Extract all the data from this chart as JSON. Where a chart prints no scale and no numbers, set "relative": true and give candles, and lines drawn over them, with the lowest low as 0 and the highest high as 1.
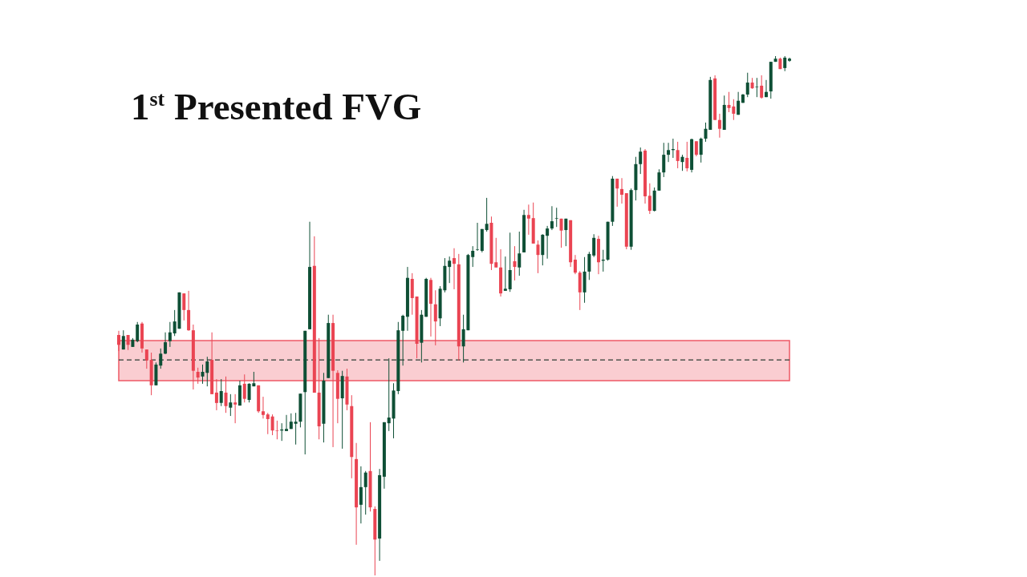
{
  "chart_data": {
    "type": "candlestick",
    "title": "1$^{st}$ Presented FVG",
    "relative": true,
    "tick_labels": false,
    "categories": [
      null,
      null,
      null,
      null,
      null,
      null,
      null,
      null,
      null,
      null,
      null,
      null,
      null,
      null,
      null,
      null,
      null,
      null,
      null,
      null,
      null,
      null,
      null,
      null,
      null,
      null,
      null,
      null,
      null,
      null,
      null,
      null,
      null,
      null,
      null,
      null,
      null,
      null,
      null,
      null,
      null,
      null,
      null,
      null,
      null,
      null,
      null,
      null,
      null,
      null,
      null,
      null,
      null,
      null,
      null,
      null,
      null,
      null,
      null,
      null,
      null,
      null,
      null,
      null,
      null,
      null,
      null,
      null,
      null,
      null,
      null,
      null,
      null,
      null,
      null,
      null,
      null,
      null,
      null,
      null,
      null,
      null,
      null,
      null,
      null,
      null,
      null,
      null,
      null,
      null,
      null,
      null,
      null,
      null,
      null,
      null,
      null,
      null,
      null,
      null,
      null,
      null,
      null,
      null,
      null,
      null,
      null,
      null,
      null,
      null,
      null,
      null,
      null,
      null,
      null,
      null,
      null,
      null,
      null,
      null,
      null,
      null,
      null,
      null,
      null,
      null,
      null,
      null,
      null,
      null,
      null,
      null,
      null,
      null,
      null,
      null,
      null,
      null,
      null,
      null,
      null,
      null,
      null,
      null,
      null
    ],
    "ohlc": [
      [
        0.463,
        0.471,
        0.432,
        0.444
      ],
      [
        0.435,
        0.472,
        0.435,
        0.461
      ],
      [
        0.463,
        0.463,
        0.434,
        0.444
      ],
      [
        0.44,
        0.457,
        0.44,
        0.454
      ],
      [
        0.451,
        0.488,
        0.449,
        0.483
      ],
      [
        0.485,
        0.488,
        0.429,
        0.437
      ],
      [
        0.435,
        0.435,
        0.398,
        0.414
      ],
      [
        0.415,
        0.429,
        0.347,
        0.366
      ],
      [
        0.366,
        0.41,
        0.366,
        0.406
      ],
      [
        0.404,
        0.437,
        0.398,
        0.427
      ],
      [
        0.427,
        0.468,
        0.426,
        0.449
      ],
      [
        0.451,
        0.488,
        0.44,
        0.468
      ],
      [
        0.466,
        0.511,
        0.461,
        0.489
      ],
      [
        0.475,
        0.545,
        0.475,
        0.545
      ],
      [
        0.543,
        0.543,
        0.491,
        0.511
      ],
      [
        0.511,
        0.548,
        0.471,
        0.472
      ],
      [
        0.472,
        0.483,
        0.358,
        0.394
      ],
      [
        0.392,
        0.4,
        0.369,
        0.381
      ],
      [
        0.383,
        0.406,
        0.369,
        0.392
      ],
      [
        0.39,
        0.421,
        0.364,
        0.412
      ],
      [
        0.415,
        0.468,
        0.349,
        0.349
      ],
      [
        0.352,
        0.378,
        0.318,
        0.332
      ],
      [
        0.332,
        0.378,
        0.326,
        0.355
      ],
      [
        0.352,
        0.383,
        0.313,
        0.326
      ],
      [
        0.323,
        0.349,
        0.307,
        0.333
      ],
      [
        0.333,
        0.349,
        0.293,
        0.329
      ],
      [
        0.327,
        0.375,
        0.327,
        0.366
      ],
      [
        0.369,
        0.387,
        0.333,
        0.34
      ],
      [
        0.338,
        0.37,
        0.333,
        0.369
      ],
      [
        0.364,
        0.392,
        0.364,
        0.37
      ],
      [
        0.366,
        0.366,
        0.313,
        0.316
      ],
      [
        0.316,
        0.344,
        0.302,
        0.309
      ],
      [
        0.31,
        0.313,
        0.272,
        0.301
      ],
      [
        0.306,
        0.31,
        0.27,
        0.279
      ],
      [
        0.279,
        0.298,
        0.262,
        0.278
      ],
      [
        0.279,
        0.293,
        0.259,
        0.281
      ],
      [
        0.278,
        0.309,
        0.278,
        0.282
      ],
      [
        0.282,
        0.312,
        0.282,
        0.296
      ],
      [
        0.292,
        0.313,
        0.252,
        0.296
      ],
      [
        0.296,
        0.35,
        0.285,
        0.35
      ],
      [
        0.353,
        0.471,
        0.233,
        0.471
      ],
      [
        0.474,
        0.681,
        0.474,
        0.594
      ],
      [
        0.596,
        0.653,
        0.352,
        0.352
      ],
      [
        0.352,
        0.457,
        0.262,
        0.287
      ],
      [
        0.292,
        0.39,
        0.256,
        0.375
      ],
      [
        0.38,
        0.502,
        0.38,
        0.486
      ],
      [
        0.486,
        0.502,
        0.247,
        0.394
      ],
      [
        0.39,
        0.395,
        0.293,
        0.34
      ],
      [
        0.341,
        0.394,
        0.244,
        0.384
      ],
      [
        0.383,
        0.398,
        0.318,
        0.329
      ],
      [
        0.326,
        0.347,
        0.187,
        0.228
      ],
      [
        0.224,
        0.255,
        0.059,
        0.131
      ],
      [
        0.136,
        0.21,
        0.1,
        0.17
      ],
      [
        0.17,
        0.201,
        0.117,
        0.198
      ],
      [
        0.201,
        0.295,
        0.123,
        0.131
      ],
      [
        0.128,
        0.133,
        0,
        0.069
      ],
      [
        0.071,
        0.205,
        0.028,
        0.193
      ],
      [
        0.19,
        0.295,
        0.167,
        0.295
      ],
      [
        0.293,
        0.418,
        0.278,
        0.304
      ],
      [
        0.302,
        0.37,
        0.264,
        0.356
      ],
      [
        0.355,
        0.488,
        0.349,
        0.472
      ],
      [
        0.471,
        0.502,
        0.404,
        0.5
      ],
      [
        0.498,
        0.594,
        0.471,
        0.573
      ],
      [
        0.571,
        0.582,
        0.502,
        0.534
      ],
      [
        0.537,
        0.537,
        0.418,
        0.446
      ],
      [
        0.448,
        0.511,
        0.41,
        0.502
      ],
      [
        0.498,
        0.573,
        0.498,
        0.571
      ],
      [
        0.569,
        0.573,
        0.46,
        0.523
      ],
      [
        0.522,
        0.549,
        0.443,
        0.489
      ],
      [
        0.495,
        0.557,
        0.48,
        0.552
      ],
      [
        0.549,
        0.611,
        0.545,
        0.596
      ],
      [
        0.594,
        0.614,
        0.563,
        0.606
      ],
      [
        0.611,
        0.63,
        0.551,
        0.6
      ],
      [
        0.599,
        0.619,
        0.414,
        0.441
      ],
      [
        0.441,
        0.502,
        0.41,
        0.474
      ],
      [
        0.472,
        0.619,
        0.472,
        0.617
      ],
      [
        0.613,
        0.634,
        0.594,
        0.625
      ],
      [
        0.627,
        0.679,
        0.625,
        0.628
      ],
      [
        0.625,
        0.667,
        0.622,
        0.667
      ],
      [
        0.665,
        0.727,
        0.662,
        0.677
      ],
      [
        0.679,
        0.691,
        0.588,
        0.6
      ],
      [
        0.603,
        0.65,
        0.593,
        0.593
      ],
      [
        0.593,
        0.628,
        0.537,
        0.543
      ],
      [
        0.548,
        0.614,
        0.548,
        0.552
      ],
      [
        0.551,
        0.66,
        0.546,
        0.588
      ],
      [
        0.605,
        0.634,
        0.568,
        0.594
      ],
      [
        0.593,
        0.662,
        0.577,
        0.62
      ],
      [
        0.622,
        0.704,
        0.622,
        0.694
      ],
      [
        0.694,
        0.714,
        0.656,
        0.687
      ],
      [
        0.688,
        0.718,
        0.639,
        0.639
      ],
      [
        0.637,
        0.645,
        0.582,
        0.617
      ],
      [
        0.617,
        0.657,
        0.597,
        0.656
      ],
      [
        0.654,
        0.673,
        0.61,
        0.668
      ],
      [
        0.668,
        0.711,
        0.665,
        0.682
      ],
      [
        0.687,
        0.708,
        0.671,
        0.688
      ],
      [
        0.687,
        0.687,
        0.631,
        0.664
      ],
      [
        0.665,
        0.687,
        0.634,
        0.687
      ],
      [
        0.684,
        0.684,
        0.594,
        0.603
      ],
      [
        0.608,
        0.617,
        0.58,
        0.583
      ],
      [
        0.583,
        0.586,
        0.511,
        0.545
      ],
      [
        0.545,
        0.613,
        0.525,
        0.585
      ],
      [
        0.585,
        0.623,
        0.569,
        0.619
      ],
      [
        0.616,
        0.657,
        0.613,
        0.65
      ],
      [
        0.648,
        0.654,
        0.58,
        0.603
      ],
      [
        0.606,
        0.627,
        0.585,
        0.608
      ],
      [
        0.608,
        0.681,
        0.606,
        0.681
      ],
      [
        0.681,
        0.769,
        0.673,
        0.764
      ],
      [
        0.764,
        0.764,
        0.71,
        0.745
      ],
      [
        0.744,
        0.765,
        0.716,
        0.733
      ],
      [
        0.736,
        0.736,
        0.628,
        0.633
      ],
      [
        0.633,
        0.745,
        0.627,
        0.742
      ],
      [
        0.742,
        0.806,
        0.722,
        0.792
      ],
      [
        0.792,
        0.824,
        0.773,
        0.816
      ],
      [
        0.818,
        0.821,
        0.716,
        0.73
      ],
      [
        0.731,
        0.755,
        0.696,
        0.702
      ],
      [
        0.702,
        0.747,
        0.701,
        0.741
      ],
      [
        0.741,
        0.782,
        0.741,
        0.776
      ],
      [
        0.776,
        0.833,
        0.767,
        0.81
      ],
      [
        0.81,
        0.833,
        0.796,
        0.819
      ],
      [
        0.819,
        0.841,
        0.804,
        0.821
      ],
      [
        0.819,
        0.835,
        0.784,
        0.798
      ],
      [
        0.796,
        0.81,
        0.779,
        0.806
      ],
      [
        0.804,
        0.835,
        0.778,
        0.784
      ],
      [
        0.781,
        0.841,
        0.776,
        0.84
      ],
      [
        0.836,
        0.836,
        0.807,
        0.81
      ],
      [
        0.81,
        0.843,
        0.795,
        0.841
      ],
      [
        0.841,
        0.872,
        0.835,
        0.86
      ],
      [
        0.858,
        0.96,
        0.858,
        0.954
      ],
      [
        0.957,
        0.963,
        0.877,
        0.877
      ],
      [
        0.877,
        0.889,
        0.843,
        0.86
      ],
      [
        0.858,
        0.924,
        0.858,
        0.906
      ],
      [
        0.906,
        0.931,
        0.892,
        0.9
      ],
      [
        0.903,
        0.917,
        0.877,
        0.889
      ],
      [
        0.887,
        0.931,
        0.887,
        0.914
      ],
      [
        0.91,
        0.927,
        0.91,
        0.926
      ],
      [
        0.926,
        0.968,
        0.921,
        0.949
      ],
      [
        0.949,
        0.958,
        0.937,
        0.938
      ],
      [
        0.94,
        0.958,
        0.921,
        0.941
      ],
      [
        0.943,
        0.963,
        0.918,
        0.92
      ],
      [
        0.921,
        0.954,
        0.921,
        0.931
      ],
      [
        0.932,
        0.989,
        0.918,
        0.989
      ],
      [
        0.989,
        1,
        0.989,
        0.995
      ],
      [
        0.995,
        0.997,
        0.975,
        0.975
      ],
      [
        0.977,
        1,
        0.971,
        0.997
      ],
      [
        0.991,
        0.997,
        0.989,
        0.995
      ]
    ],
    "colors": [
      "#ea4452",
      "#0e4f35",
      "#ea4452",
      "#0e4f35",
      "#0e4f35",
      "#ea4452",
      "#ea4452",
      "#ea4452",
      "#0e4f35",
      "#0e4f35",
      "#0e4f35",
      "#0e4f35",
      "#0e4f35",
      "#0e4f35",
      "#ea4452",
      "#ea4452",
      "#ea4452",
      "#ea4452",
      "#0e4f35",
      "#0e4f35",
      "#ea4452",
      "#ea4452",
      "#0e4f35",
      "#ea4452",
      "#0e4f35",
      "#ea4452",
      "#0e4f35",
      "#ea4452",
      "#0e4f35",
      "#0e4f35",
      "#ea4452",
      "#ea4452",
      "#ea4452",
      "#ea4452",
      "#ea4452",
      "#0e4f35",
      "#0e4f35",
      "#0e4f35",
      "#0e4f35",
      "#0e4f35",
      "#0e4f35",
      "#0e4f35",
      "#ea4452",
      "#ea4452",
      "#0e4f35",
      "#0e4f35",
      "#ea4452",
      "#ea4452",
      "#0e4f35",
      "#ea4452",
      "#ea4452",
      "#ea4452",
      "#0e4f35",
      "#0e4f35",
      "#ea4452",
      "#ea4452",
      "#0e4f35",
      "#0e4f35",
      "#0e4f35",
      "#0e4f35",
      "#0e4f35",
      "#0e4f35",
      "#0e4f35",
      "#ea4452",
      "#ea4452",
      "#0e4f35",
      "#0e4f35",
      "#ea4452",
      "#ea4452",
      "#0e4f35",
      "#0e4f35",
      "#0e4f35",
      "#ea4452",
      "#ea4452",
      "#0e4f35",
      "#0e4f35",
      "#0e4f35",
      "#0e4f35",
      "#0e4f35",
      "#0e4f35",
      "#ea4452",
      "#ea4452",
      "#ea4452",
      "#0e4f35",
      "#0e4f35",
      "#ea4452",
      "#0e4f35",
      "#0e4f35",
      "#ea4452",
      "#ea4452",
      "#ea4452",
      "#0e4f35",
      "#0e4f35",
      "#0e4f35",
      "#0e4f35",
      "#ea4452",
      "#0e4f35",
      "#ea4452",
      "#ea4452",
      "#ea4452",
      "#0e4f35",
      "#0e4f35",
      "#0e4f35",
      "#ea4452",
      "#0e4f35",
      "#0e4f35",
      "#0e4f35",
      "#ea4452",
      "#ea4452",
      "#ea4452",
      "#0e4f35",
      "#0e4f35",
      "#0e4f35",
      "#ea4452",
      "#ea4452",
      "#0e4f35",
      "#0e4f35",
      "#0e4f35",
      "#0e4f35",
      "#0e4f35",
      "#ea4452",
      "#0e4f35",
      "#ea4452",
      "#0e4f35",
      "#ea4452",
      "#0e4f35",
      "#0e4f35",
      "#0e4f35",
      "#ea4452",
      "#ea4452",
      "#0e4f35",
      "#ea4452",
      "#ea4452",
      "#0e4f35",
      "#0e4f35",
      "#0e4f35",
      "#ea4452",
      "#0e4f35",
      "#ea4452",
      "#0e4f35",
      "#0e4f35",
      "#0e4f35",
      "#ea4452",
      "#0e4f35",
      "#0e4f35"
    ],
    "bands": [
      {
        "axis": "y",
        "from": 0.375,
        "to": 0.452,
        "color": "#ee5a66"
      }
    ],
    "ref_lines": [
      {
        "axis": "y",
        "value": 0.415,
        "color": "#2e3d34",
        "line_style": "dashed"
      }
    ]
  }
}
